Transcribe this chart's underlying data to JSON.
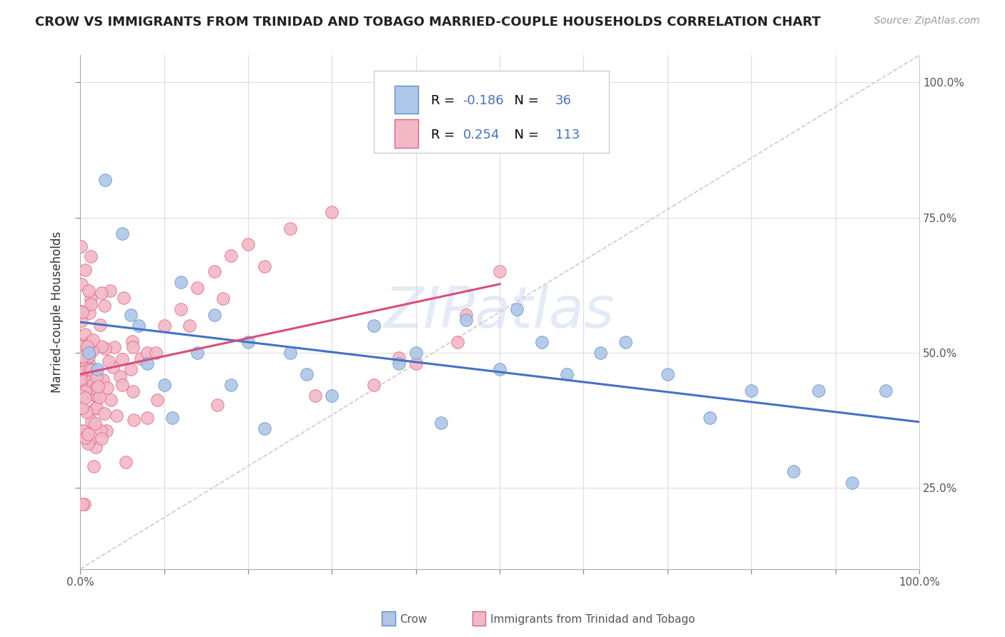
{
  "title": "CROW VS IMMIGRANTS FROM TRINIDAD AND TOBAGO MARRIED-COUPLE HOUSEHOLDS CORRELATION CHART",
  "source": "Source: ZipAtlas.com",
  "ylabel": "Married-couple Households",
  "crow_R": -0.186,
  "crow_N": 36,
  "immig_R": 0.254,
  "immig_N": 113,
  "crow_color": "#aec6e8",
  "crow_edge_color": "#5b8fc9",
  "crow_line_color": "#4472c4",
  "immig_color": "#f2b8c6",
  "immig_edge_color": "#e06080",
  "immig_line_color": "#d94f78",
  "watermark": "ZIPatlas",
  "xlim": [
    0.0,
    1.0
  ],
  "ylim": [
    0.1,
    1.05
  ],
  "yticks": [
    0.25,
    0.5,
    0.75,
    1.0
  ],
  "ytick_labels": [
    "25.0%",
    "50.0%",
    "75.0%",
    "100.0%"
  ],
  "xtick_labels": [
    "0.0%",
    "",
    "",
    "",
    "",
    "",
    "",
    "",
    "",
    "",
    "100.0%"
  ],
  "title_fontsize": 13,
  "source_fontsize": 10,
  "tick_fontsize": 11
}
